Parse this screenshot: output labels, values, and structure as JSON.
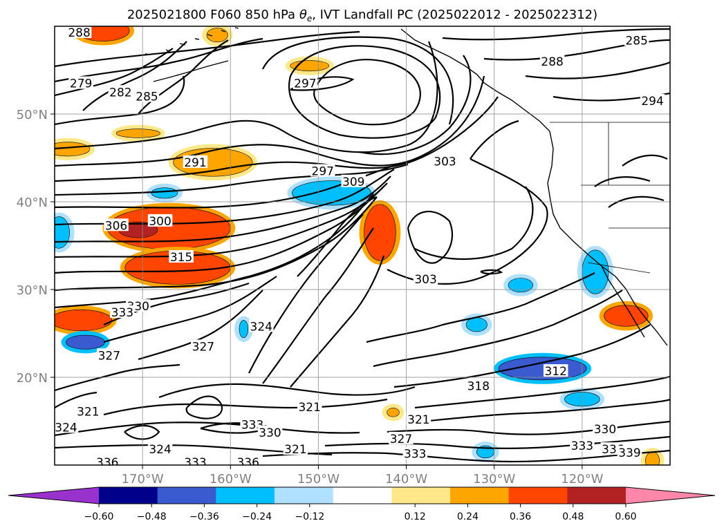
{
  "chart_data": {
    "type": "contour",
    "title": "2025021800 F060 850 hPa θe, IVT Landfall PC (2025022012 - 2025022312)",
    "title_parts": {
      "prefix": "2025021800 F060 850 hPa ",
      "symbol": "θ",
      "subscript": "e",
      "suffix": ", IVT Landfall PC (2025022012 - 2025022312)"
    },
    "lon_range": [
      -180,
      -110
    ],
    "lat_range": [
      10,
      60
    ],
    "x_ticks": [
      "170°W",
      "160°W",
      "150°W",
      "140°W",
      "130°W",
      "120°W"
    ],
    "x_tick_values": [
      -170,
      -160,
      -150,
      -140,
      -130,
      -120
    ],
    "y_ticks": [
      "20°N",
      "30°N",
      "40°N",
      "50°N"
    ],
    "y_tick_values": [
      20,
      30,
      40,
      50
    ],
    "grid": true,
    "contour_labels": [
      {
        "text": "288",
        "lon": -177.2,
        "lat": 59.3
      },
      {
        "text": "285",
        "lon": -113.8,
        "lat": 58.4
      },
      {
        "text": "288",
        "lon": -123.4,
        "lat": 56.0
      },
      {
        "text": "279",
        "lon": -177.0,
        "lat": 53.5
      },
      {
        "text": "282",
        "lon": -172.5,
        "lat": 52.5
      },
      {
        "text": "285",
        "lon": -169.5,
        "lat": 52.0
      },
      {
        "text": "294",
        "lon": -112.0,
        "lat": 51.5
      },
      {
        "text": "297",
        "lon": -151.5,
        "lat": 53.5
      },
      {
        "text": "291",
        "lon": -164.0,
        "lat": 44.5
      },
      {
        "text": "297",
        "lon": -149.5,
        "lat": 43.5
      },
      {
        "text": "303",
        "lon": -135.6,
        "lat": 44.6
      },
      {
        "text": "309",
        "lon": -146.0,
        "lat": 42.3
      },
      {
        "text": "300",
        "lon": -168.0,
        "lat": 37.8
      },
      {
        "text": "306",
        "lon": -173.0,
        "lat": 37.3
      },
      {
        "text": "315",
        "lon": -165.6,
        "lat": 33.7
      },
      {
        "text": "303",
        "lon": -137.8,
        "lat": 31.2
      },
      {
        "text": "330",
        "lon": -170.5,
        "lat": 28.1
      },
      {
        "text": "333",
        "lon": -172.3,
        "lat": 27.4
      },
      {
        "text": "324",
        "lon": -156.5,
        "lat": 25.8
      },
      {
        "text": "327",
        "lon": -163.1,
        "lat": 23.5
      },
      {
        "text": "327",
        "lon": -173.8,
        "lat": 22.5
      },
      {
        "text": "312",
        "lon": -123.0,
        "lat": 20.7
      },
      {
        "text": "318",
        "lon": -131.8,
        "lat": 19.0
      },
      {
        "text": "321",
        "lon": -176.2,
        "lat": 16.1
      },
      {
        "text": "321",
        "lon": -151.0,
        "lat": 16.6
      },
      {
        "text": "324",
        "lon": -178.7,
        "lat": 14.3
      },
      {
        "text": "321",
        "lon": -138.6,
        "lat": 15.2
      },
      {
        "text": "333",
        "lon": -157.5,
        "lat": 14.6
      },
      {
        "text": "330",
        "lon": -155.5,
        "lat": 13.7
      },
      {
        "text": "330",
        "lon": -117.4,
        "lat": 14.1
      },
      {
        "text": "327",
        "lon": -140.6,
        "lat": 13.0
      },
      {
        "text": "324",
        "lon": -168.0,
        "lat": 11.8
      },
      {
        "text": "321",
        "lon": -152.6,
        "lat": 11.8
      },
      {
        "text": "333",
        "lon": -139.0,
        "lat": 11.3
      },
      {
        "text": "333",
        "lon": -120.0,
        "lat": 12.2
      },
      {
        "text": "336",
        "lon": -116.5,
        "lat": 11.8
      },
      {
        "text": "339",
        "lon": -114.6,
        "lat": 11.4
      },
      {
        "text": "336",
        "lon": -174.0,
        "lat": 10.3
      },
      {
        "text": "333",
        "lon": -164.0,
        "lat": 10.3
      },
      {
        "text": "336",
        "lon": -158.0,
        "lat": 10.3
      }
    ],
    "colorbar": {
      "ticks": [
        "−0.60",
        "−0.48",
        "−0.36",
        "−0.24",
        "−0.12",
        "0.12",
        "0.24",
        "0.36",
        "0.48",
        "0.60"
      ],
      "boundaries": [
        -0.6,
        -0.48,
        -0.36,
        -0.24,
        -0.12,
        0.12,
        0.24,
        0.36,
        0.48,
        0.6
      ],
      "colors": [
        "#9932cc",
        "#00008b",
        "#3a5ad0",
        "#00bfff",
        "#b0e0ff",
        "#ffffff",
        "#ffe88a",
        "#ffa500",
        "#ff4500",
        "#b22222",
        "#ff88aa"
      ],
      "extend": "both"
    },
    "shaded_regions": [
      {
        "lon": -174.5,
        "lat": 59.5,
        "rlon": 3.0,
        "rlat": 1.2,
        "color": "#ff4500",
        "halo": "#ffa500"
      },
      {
        "lon": -161.5,
        "lat": 59.0,
        "rlon": 1.2,
        "rlat": 0.8,
        "color": "#ffa500",
        "halo": "#ffe88a"
      },
      {
        "lon": -151.0,
        "lat": 55.5,
        "rlon": 2.2,
        "rlat": 0.6,
        "color": "#ffa500",
        "halo": "#ffe88a"
      },
      {
        "lon": -170.5,
        "lat": 47.8,
        "rlon": 2.5,
        "rlat": 0.5,
        "color": "#ffa500",
        "halo": "#ffe88a"
      },
      {
        "lon": -178.5,
        "lat": 46.0,
        "rlon": 2.5,
        "rlat": 0.8,
        "color": "#ffa500",
        "halo": "#ffe88a"
      },
      {
        "lon": -162.0,
        "lat": 44.5,
        "rlon": 4.5,
        "rlat": 1.6,
        "color": "#ffa500",
        "halo": "#ffe88a"
      },
      {
        "lon": -167.0,
        "lat": 37.0,
        "rlon": 7.0,
        "rlat": 2.4,
        "color": "#ff4500",
        "halo": "#ffa500"
      },
      {
        "lon": -170.5,
        "lat": 36.8,
        "rlon": 2.2,
        "rlat": 0.9,
        "color": "#b22222",
        "halo": "#ff4500"
      },
      {
        "lon": -166.0,
        "lat": 32.5,
        "rlon": 6.0,
        "rlat": 1.9,
        "color": "#ff4500",
        "halo": "#ffa500"
      },
      {
        "lon": -177.0,
        "lat": 26.5,
        "rlon": 3.5,
        "rlat": 1.2,
        "color": "#ff4500",
        "halo": "#ffa500"
      },
      {
        "lon": -176.5,
        "lat": 24.0,
        "rlon": 2.2,
        "rlat": 0.8,
        "color": "#3a5ad0",
        "halo": "#00bfff"
      },
      {
        "lon": -143.0,
        "lat": 36.5,
        "rlon": 1.8,
        "rlat": 3.2,
        "color": "#ff4500",
        "halo": "#ffa500"
      },
      {
        "lon": -148.5,
        "lat": 41.0,
        "rlon": 4.5,
        "rlat": 1.4,
        "color": "#00bfff",
        "halo": "#b0e0ff"
      },
      {
        "lon": -167.5,
        "lat": 41.0,
        "rlon": 1.5,
        "rlat": 0.6,
        "color": "#00bfff",
        "halo": "#b0e0ff"
      },
      {
        "lon": -179.5,
        "lat": 36.5,
        "rlon": 1.2,
        "rlat": 1.8,
        "color": "#00bfff",
        "halo": "#b0e0ff"
      },
      {
        "lon": -124.5,
        "lat": 21.0,
        "rlon": 5.0,
        "rlat": 1.3,
        "color": "#3a5ad0",
        "halo": "#00bfff"
      },
      {
        "lon": -118.5,
        "lat": 32.0,
        "rlon": 1.5,
        "rlat": 2.5,
        "color": "#00bfff",
        "halo": "#b0e0ff"
      },
      {
        "lon": -132.0,
        "lat": 26.0,
        "rlon": 1.2,
        "rlat": 0.8,
        "color": "#00bfff",
        "halo": "#b0e0ff"
      },
      {
        "lon": -127.0,
        "lat": 30.5,
        "rlon": 1.4,
        "rlat": 0.8,
        "color": "#00bfff",
        "halo": "#b0e0ff"
      },
      {
        "lon": -115.0,
        "lat": 27.0,
        "rlon": 2.5,
        "rlat": 1.2,
        "color": "#ff4500",
        "halo": "#ffa500"
      },
      {
        "lon": -120.0,
        "lat": 17.5,
        "rlon": 2.0,
        "rlat": 0.8,
        "color": "#00bfff",
        "halo": "#b0e0ff"
      },
      {
        "lon": -131.0,
        "lat": 11.5,
        "rlon": 1.0,
        "rlat": 0.7,
        "color": "#00bfff",
        "halo": "#b0e0ff"
      },
      {
        "lon": -112.0,
        "lat": 10.5,
        "rlon": 0.8,
        "rlat": 1.0,
        "color": "#ffa500",
        "halo": "#ffe88a"
      },
      {
        "lon": -141.5,
        "lat": 16.0,
        "rlon": 0.7,
        "rlat": 0.5,
        "color": "#ffa500",
        "halo": "#ffe88a"
      },
      {
        "lon": -158.5,
        "lat": 25.5,
        "rlon": 0.5,
        "rlat": 1.0,
        "color": "#00bfff",
        "halo": "#b0e0ff"
      }
    ]
  }
}
